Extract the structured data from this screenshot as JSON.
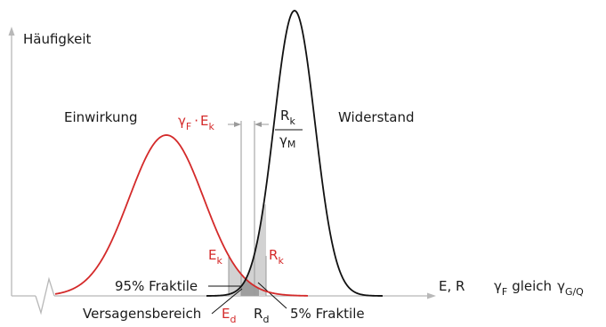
{
  "colors": {
    "einwirkung_curve": "#d42a2a",
    "widerstand_curve": "#111111",
    "axis": "#b8b8b8",
    "failure_area": "#9e9e9e",
    "fractile_area": "#d2d2d2"
  },
  "y_axis_label": "Häufigkeit",
  "x_axis_label": "E, R",
  "einwirkung_label": "Einwirkung",
  "widerstand_label": "Widerstand",
  "design_load": {
    "gamma": "γ",
    "gamma_sub": "F",
    "dot": "·",
    "e": "E",
    "e_sub": "k"
  },
  "design_resistance": {
    "r": "R",
    "r_sub": "k",
    "gamma": "γ",
    "gamma_sub": "M"
  },
  "ek_label": {
    "main": "E",
    "sub": "k"
  },
  "rk_label": {
    "main": "R",
    "sub": "k"
  },
  "ed_label": {
    "main": "E",
    "sub": "d"
  },
  "rd_label": {
    "main": "R",
    "sub": "d"
  },
  "fractile_95": "95% Fraktile",
  "fractile_5": "5% Fraktile",
  "versagensbereich": "Versagensbereich",
  "gamma_note": {
    "g1": "γ",
    "s1": "F",
    "word": "gleich",
    "g2": "γ",
    "s2": "G/Q"
  }
}
